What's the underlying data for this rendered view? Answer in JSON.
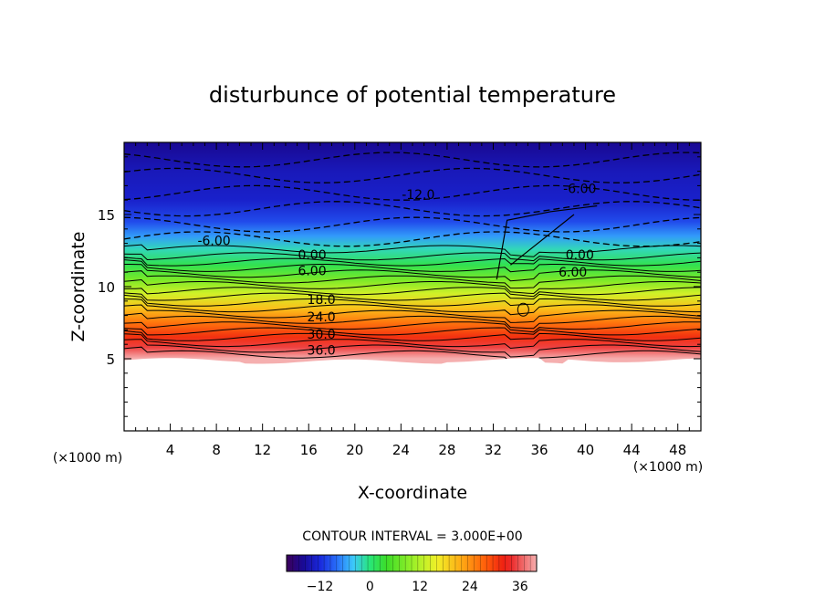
{
  "chart_data": {
    "type": "heatmap",
    "title": "disturbunce of potential temperature",
    "xlabel": "X-coordinate",
    "ylabel": "Z-coordinate",
    "x_unit_left": "(×1000 m)",
    "x_unit_right": "(×1000 m)",
    "xlim": [
      0,
      50
    ],
    "ylim": [
      0,
      20
    ],
    "x_ticks": [
      4,
      8,
      12,
      16,
      20,
      24,
      28,
      32,
      36,
      40,
      44,
      48
    ],
    "y_ticks": [
      5,
      10,
      15
    ],
    "contour_interval_text": "CONTOUR INTERVAL = 3.000E+00",
    "colorbar": {
      "range": [
        -20,
        40
      ],
      "ticks": [
        -12,
        0,
        12,
        24,
        36
      ]
    },
    "grid": false,
    "contour_labels": [
      {
        "text": "-12.0",
        "x": 25.5,
        "z": 16.4
      },
      {
        "text": "-6.00",
        "x": 7.8,
        "z": 13.2
      },
      {
        "text": "-6.00",
        "x": 39.5,
        "z": 16.8
      },
      {
        "text": "0.00",
        "x": 16.3,
        "z": 12.2
      },
      {
        "text": "0.00",
        "x": 39.5,
        "z": 12.2
      },
      {
        "text": "6.00",
        "x": 16.3,
        "z": 11.1
      },
      {
        "text": "6.00",
        "x": 38.9,
        "z": 11.0
      },
      {
        "text": "18.0",
        "x": 17.1,
        "z": 9.1
      },
      {
        "text": "24.0",
        "x": 17.1,
        "z": 7.9
      },
      {
        "text": "30.0",
        "x": 17.1,
        "z": 6.7
      },
      {
        "text": "36.0",
        "x": 17.1,
        "z": 5.6
      }
    ],
    "field_levels": [
      {
        "z": 19.8,
        "value": -16
      },
      {
        "z": 18.0,
        "value": -14
      },
      {
        "z": 16.0,
        "value": -13
      },
      {
        "z": 14.5,
        "value": -10
      },
      {
        "z": 13.5,
        "value": -6
      },
      {
        "z": 12.6,
        "value": -2
      },
      {
        "z": 11.5,
        "value": 2
      },
      {
        "z": 10.5,
        "value": 8
      },
      {
        "z": 9.5,
        "value": 14
      },
      {
        "z": 8.5,
        "value": 20
      },
      {
        "z": 7.5,
        "value": 26
      },
      {
        "z": 6.5,
        "value": 31
      },
      {
        "z": 5.8,
        "value": 35
      },
      {
        "z": 5.0,
        "value": 40
      }
    ],
    "lower_boundary_z": 4.9
  }
}
